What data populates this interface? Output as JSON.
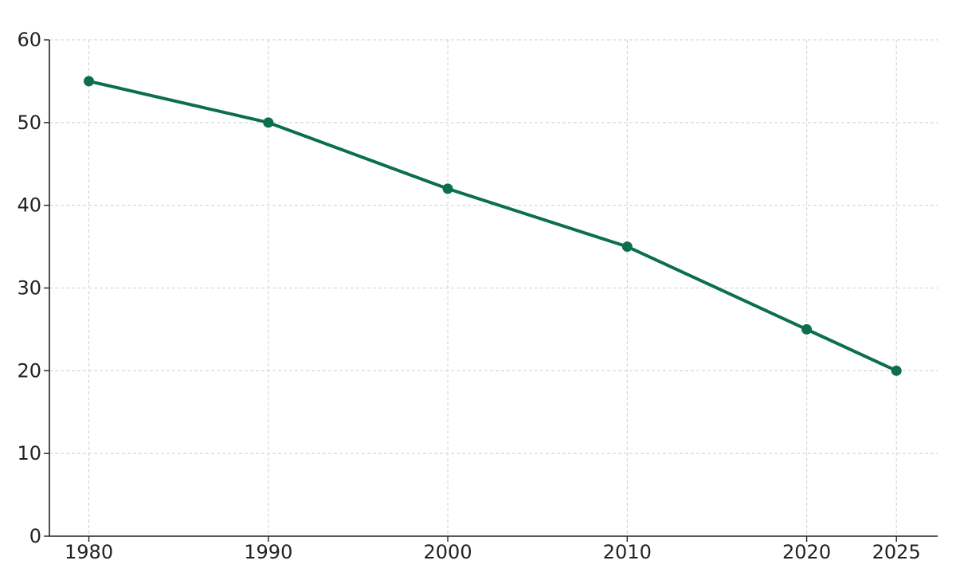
{
  "chart_data": {
    "type": "line",
    "title": "",
    "xlabel": "",
    "ylabel": "",
    "x": [
      1980,
      1990,
      2000,
      2010,
      2020,
      2025
    ],
    "x_ticks": [
      1980,
      1990,
      2000,
      2010,
      2020,
      2025
    ],
    "y_ticks": [
      0,
      10,
      20,
      30,
      40,
      50,
      60
    ],
    "xlim": [
      1977.8,
      2027.3
    ],
    "ylim": [
      0,
      60
    ],
    "grid": true,
    "legend": "none",
    "series": [
      {
        "values": [
          55,
          50,
          42,
          35,
          25,
          20
        ],
        "color": "#0b6e4f",
        "marker": "circle"
      }
    ]
  }
}
